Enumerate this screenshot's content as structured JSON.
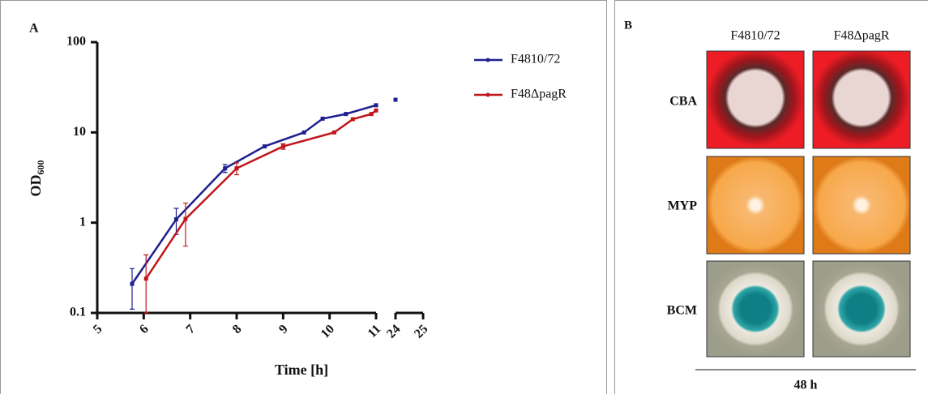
{
  "panel_a": {
    "label": "A"
  },
  "chart_data": {
    "type": "line",
    "xlabel": "Time [h]",
    "ylabel": "OD",
    "ylabel_subscript": "600",
    "xlim": [
      5,
      25
    ],
    "xbreak": [
      11,
      24
    ],
    "xticks": [
      5,
      6,
      7,
      8,
      9,
      10,
      11,
      24,
      25
    ],
    "ylim": [
      0.1,
      100
    ],
    "yticks": [
      0.1,
      1,
      10,
      100
    ],
    "log_y": true,
    "legend": "upper right",
    "series": [
      {
        "name": "F4810/72",
        "color": "#1f1f8f",
        "x": [
          5.75,
          6.7,
          7.75,
          8.6,
          9.45,
          9.85,
          10.35,
          11,
          24
        ],
        "values": [
          0.21,
          1.09,
          4.0,
          7.0,
          10,
          14.2,
          16,
          20,
          23
        ],
        "errors": [
          0.1,
          0.35,
          0.4,
          null,
          null,
          null,
          null,
          null,
          null
        ]
      },
      {
        "name": "F48ΔpagR",
        "color": "#c0161b",
        "x": [
          6.05,
          6.9,
          8.0,
          9.0,
          10.1,
          10.5,
          10.9,
          11
        ],
        "values": [
          0.24,
          1.1,
          4.0,
          7.0,
          10,
          14,
          16,
          17.5
        ],
        "errors": [
          0.2,
          0.55,
          0.6,
          0.5,
          null,
          null,
          null,
          null
        ]
      }
    ]
  },
  "panel_b": {
    "label": "B",
    "columns": [
      "F4810/72",
      "F48ΔpagR"
    ],
    "rows": [
      "CBA",
      "MYP",
      "BCM"
    ],
    "footer": "48 h"
  }
}
